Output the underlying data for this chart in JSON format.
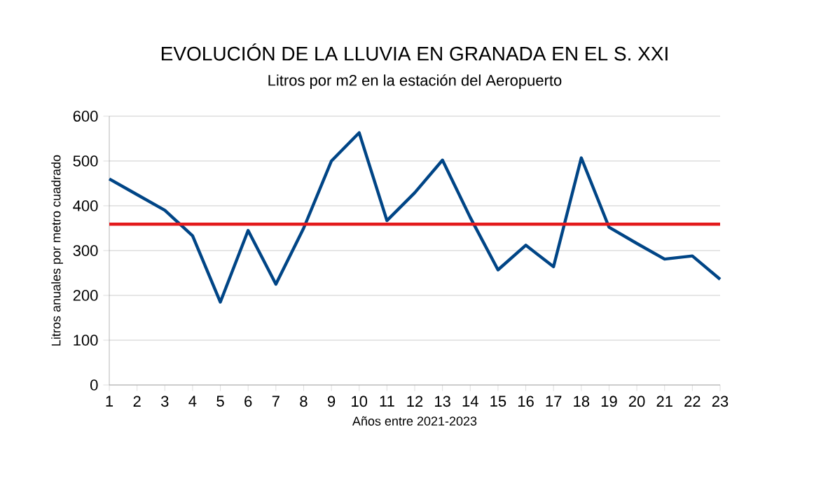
{
  "chart_data": {
    "type": "line",
    "title": "EVOLUCIÓN DE LA LLUVIA EN GRANADA EN EL S. XXI",
    "subtitle": "Litros por m2 en la estación del Aeropuerto",
    "xlabel": "Años entre 2021-2023",
    "ylabel": "Litros anuales por metro cuadrado",
    "categories": [
      "1",
      "2",
      "3",
      "4",
      "5",
      "6",
      "7",
      "8",
      "9",
      "10",
      "11",
      "12",
      "13",
      "14",
      "15",
      "16",
      "17",
      "18",
      "19",
      "20",
      "21",
      "22",
      "23"
    ],
    "series": [
      {
        "color": "#004586",
        "values": [
          460,
          425,
          390,
          333,
          185,
          345,
          225,
          350,
          500,
          563,
          367,
          429,
          502,
          374,
          257,
          312,
          264,
          507,
          352,
          316,
          281,
          288,
          236
        ]
      }
    ],
    "ylim": [
      0,
      600
    ],
    "yticks": [
      0,
      100,
      200,
      300,
      400,
      500,
      600
    ],
    "grid": "y",
    "ref_lines": [
      {
        "axis": "y",
        "value": 359,
        "color": "#e31a1c"
      }
    ]
  }
}
